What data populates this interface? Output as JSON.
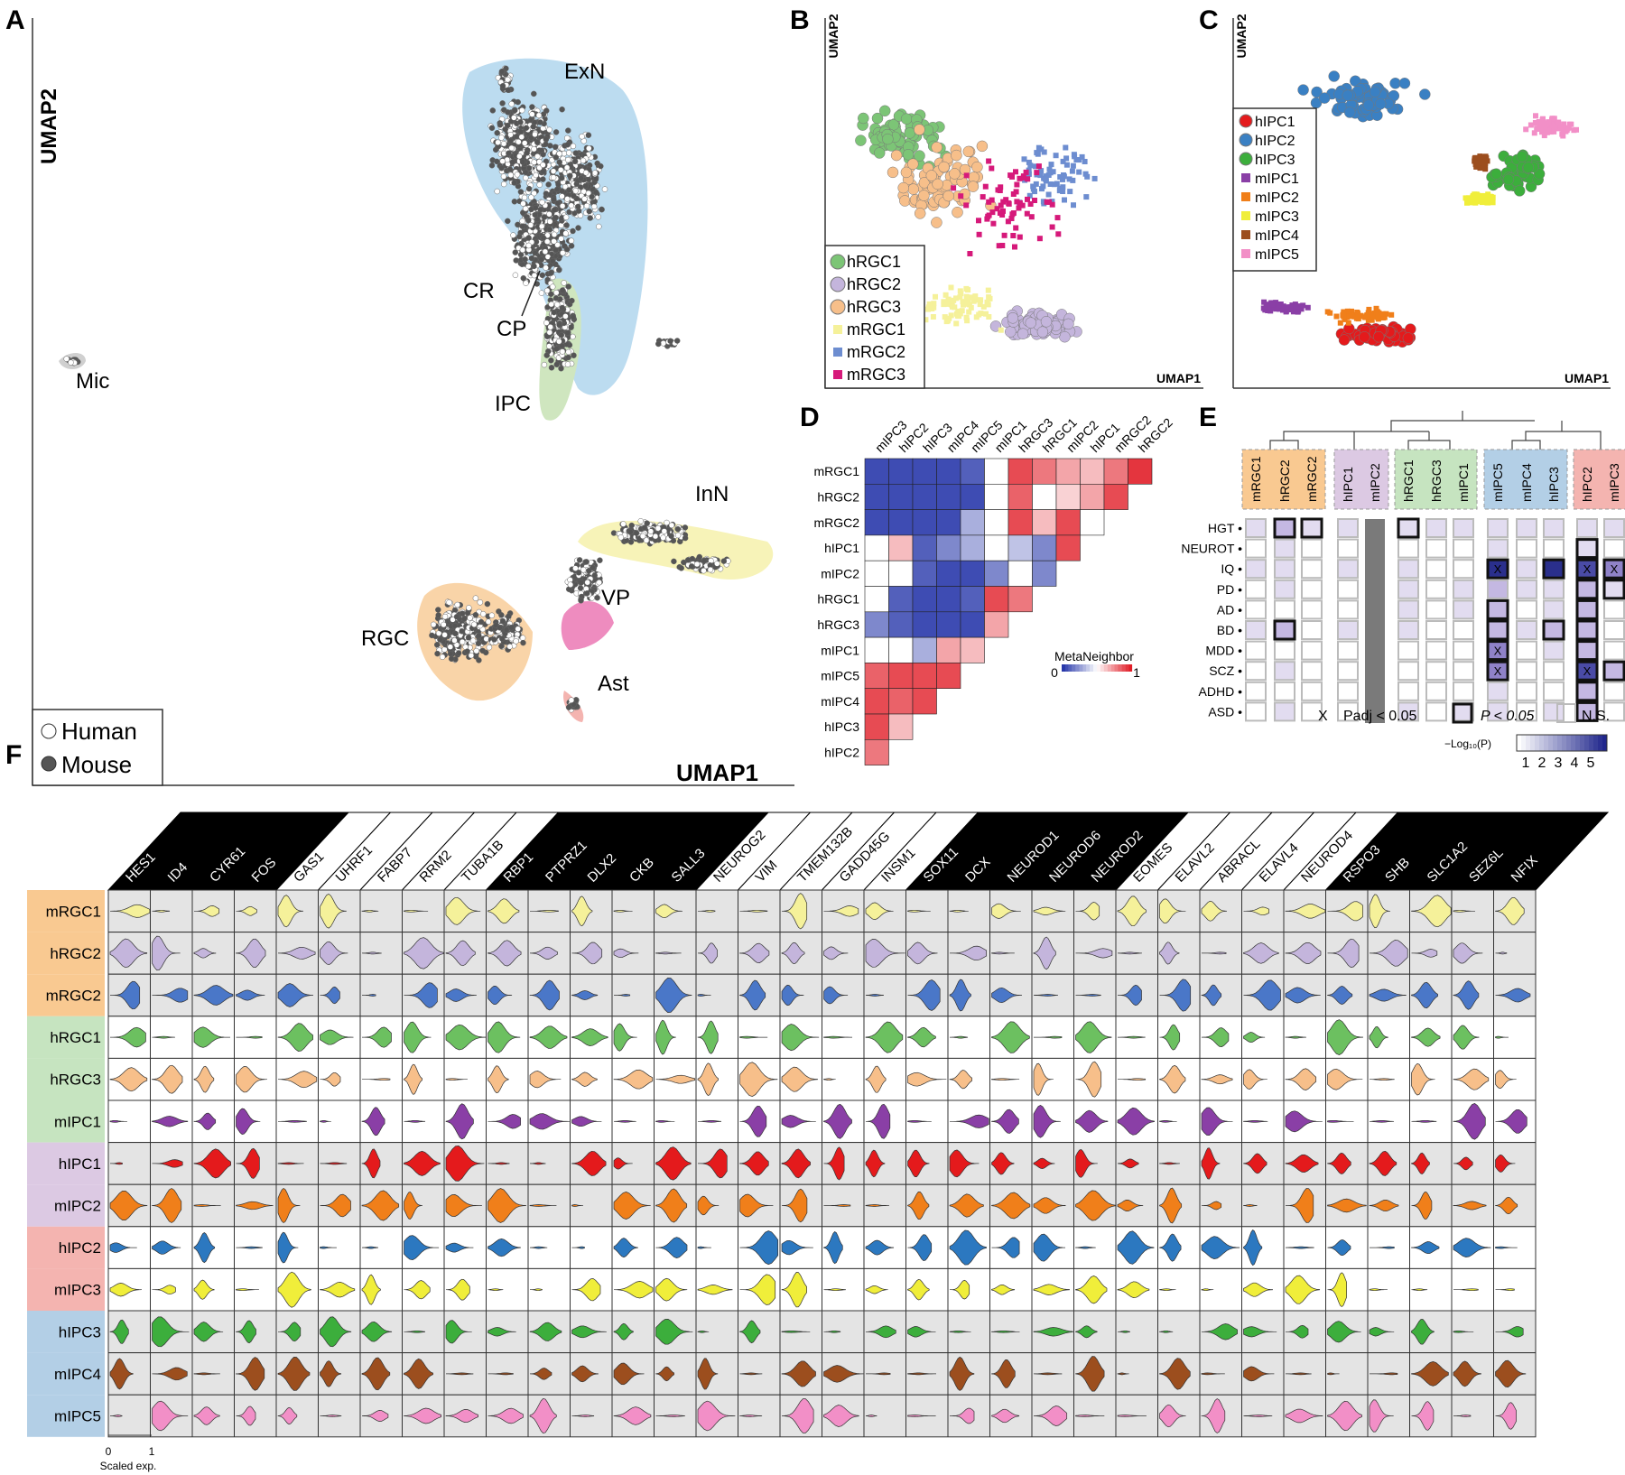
{
  "panels": {
    "A": "A",
    "B": "B",
    "C": "C",
    "D": "D",
    "E": "E",
    "F": "F"
  },
  "panelA": {
    "xlabel": "UMAP1",
    "ylabel": "UMAP2",
    "clusters": [
      "ExN",
      "CR",
      "CP",
      "IPC",
      "Mic",
      "InN",
      "VP",
      "RGC",
      "Ast"
    ],
    "legend": [
      {
        "label": "Human",
        "fill": "#ffffff"
      },
      {
        "label": "Mouse",
        "fill": "#555555"
      }
    ]
  },
  "panelB": {
    "xlabel": "UMAP1",
    "ylabel": "UMAP2",
    "legend": [
      {
        "label": "hRGC1",
        "color": "#7cc576",
        "shape": "circle"
      },
      {
        "label": "hRGC2",
        "color": "#c4b5dc",
        "shape": "circle"
      },
      {
        "label": "hRGC3",
        "color": "#f7bf8a",
        "shape": "circle"
      },
      {
        "label": "mRGC1",
        "color": "#f5f19a",
        "shape": "square"
      },
      {
        "label": "mRGC2",
        "color": "#6d8dd0",
        "shape": "square"
      },
      {
        "label": "mRGC3",
        "color": "#d6197a",
        "shape": "square"
      }
    ]
  },
  "panelC": {
    "xlabel": "UMAP1",
    "ylabel": "UMAP2",
    "legend": [
      {
        "label": "hIPC1",
        "color": "#e41a1c",
        "shape": "circle"
      },
      {
        "label": "hIPC2",
        "color": "#3a80c3",
        "shape": "circle"
      },
      {
        "label": "hIPC3",
        "color": "#3cae3c",
        "shape": "circle"
      },
      {
        "label": "mIPC1",
        "color": "#8a3fa6",
        "shape": "square"
      },
      {
        "label": "mIPC2",
        "color": "#f07f1a",
        "shape": "square"
      },
      {
        "label": "mIPC3",
        "color": "#f0ee3a",
        "shape": "square"
      },
      {
        "label": "mIPC4",
        "color": "#9c4e1e",
        "shape": "square"
      },
      {
        "label": "mIPC5",
        "color": "#f28fc7",
        "shape": "square"
      }
    ]
  },
  "panelD": {
    "cols": [
      "mIPC3",
      "hIPC2",
      "hIPC3",
      "mIPC4",
      "mIPC5",
      "mIPC1",
      "hRGC3",
      "hRGC1",
      "mIPC2",
      "hIPC1",
      "mRGC2",
      "hRGC2"
    ],
    "rows": [
      "mRGC1",
      "hRGC2",
      "mRGC2",
      "hIPC1",
      "mIPC2",
      "hRGC1",
      "hRGC3",
      "mIPC1",
      "mIPC5",
      "mIPC4",
      "hIPC3",
      "hIPC2"
    ],
    "legend_title": "MetaNeighbor",
    "legend_min": "0",
    "legend_max": "1",
    "values": [
      [
        0.05,
        0.05,
        0.05,
        0.05,
        0.1,
        0.5,
        0.9,
        0.8,
        0.7,
        0.65,
        0.8,
        0.95
      ],
      [
        0.05,
        0.05,
        0.05,
        0.05,
        0.05,
        0.5,
        0.85,
        0.5,
        0.6,
        0.7,
        0.9
      ],
      [
        0.05,
        0.05,
        0.05,
        0.05,
        0.3,
        0.5,
        0.9,
        0.65,
        0.9,
        0.5
      ],
      [
        0.5,
        0.65,
        0.1,
        0.2,
        0.3,
        0.5,
        0.35,
        0.2,
        0.9
      ],
      [
        0.5,
        0.5,
        0.1,
        0.05,
        0.05,
        0.2,
        0.5,
        0.2
      ],
      [
        0.5,
        0.1,
        0.05,
        0.05,
        0.1,
        0.9,
        0.8
      ],
      [
        0.2,
        0.1,
        0.05,
        0.05,
        0.05,
        0.7
      ],
      [
        0.5,
        0.5,
        0.3,
        0.7,
        0.65
      ],
      [
        0.85,
        0.9,
        0.9,
        0.9
      ],
      [
        0.9,
        0.85,
        0.9
      ],
      [
        0.9,
        0.65
      ],
      [
        0.8
      ]
    ]
  },
  "panelE": {
    "cols": [
      "mRGC1",
      "hRGC2",
      "mRGC2",
      "hIPC1",
      "mIPC2",
      "hRGC1",
      "hRGC3",
      "mIPC1",
      "mIPC5",
      "mIPC4",
      "hIPC3",
      "hIPC2",
      "mIPC3"
    ],
    "rows": [
      "HGT",
      "NEUROT",
      "IQ",
      "PD",
      "AD",
      "BD",
      "MDD",
      "SCZ",
      "ADHD",
      "ASD"
    ],
    "legend_x": "X",
    "legend_padj": "Padj < 0.05",
    "legend_p": "P < 0.05",
    "legend_ns": "N.S.",
    "scale_label": "−Log₁₀(P)",
    "scale_ticks": [
      "1",
      "2",
      "3",
      "4",
      "5"
    ]
  },
  "panelF": {
    "genes": [
      "HES1",
      "ID4",
      "CYR61",
      "FOS",
      "GAS1",
      "UHRF1",
      "FABP7",
      "RRM2",
      "TUBA1B",
      "RBP1",
      "PTPRZ1",
      "DLX2",
      "CKB",
      "SALL3",
      "NEUROG2",
      "VIM",
      "TMEM132B",
      "GADD45G",
      "INSM1",
      "SOX11",
      "DCX",
      "NEUROD1",
      "NEUROD6",
      "NEUROD2",
      "EOMES",
      "ELAVL2",
      "ABRACL",
      "ELAVL4",
      "NEUROD4",
      "RSPO3",
      "SHB",
      "SLC1A2",
      "SEZ6L",
      "NFIX"
    ],
    "rows": [
      {
        "label": "mRGC1",
        "color": "#f5f19a",
        "group": "#f9c991"
      },
      {
        "label": "hRGC2",
        "color": "#c4b5dc",
        "group": "#f9c991"
      },
      {
        "label": "mRGC2",
        "color": "#4a77c8",
        "group": "#f9c991"
      },
      {
        "label": "hRGC1",
        "color": "#6cc060",
        "group": "#c6e4c0"
      },
      {
        "label": "hRGC3",
        "color": "#f7bf8a",
        "group": "#c6e4c0"
      },
      {
        "label": "mIPC1",
        "color": "#8a3fa6",
        "group": "#c6e4c0"
      },
      {
        "label": "hIPC1",
        "color": "#e41a1c",
        "group": "#dcc9e3"
      },
      {
        "label": "mIPC2",
        "color": "#f07f1a",
        "group": "#dcc9e3"
      },
      {
        "label": "hIPC2",
        "color": "#2c78c0",
        "group": "#f4b4b0"
      },
      {
        "label": "mIPC3",
        "color": "#f0ee3a",
        "group": "#f4b4b0"
      },
      {
        "label": "hIPC3",
        "color": "#3cae3c",
        "group": "#b3cfe6"
      },
      {
        "label": "mIPC4",
        "color": "#9c4e1e",
        "group": "#b3cfe6"
      },
      {
        "label": "mIPC5",
        "color": "#f28fc7",
        "group": "#b3cfe6"
      }
    ],
    "scale_ticks": [
      "0",
      "1"
    ],
    "scale_label": "Scaled exp."
  }
}
